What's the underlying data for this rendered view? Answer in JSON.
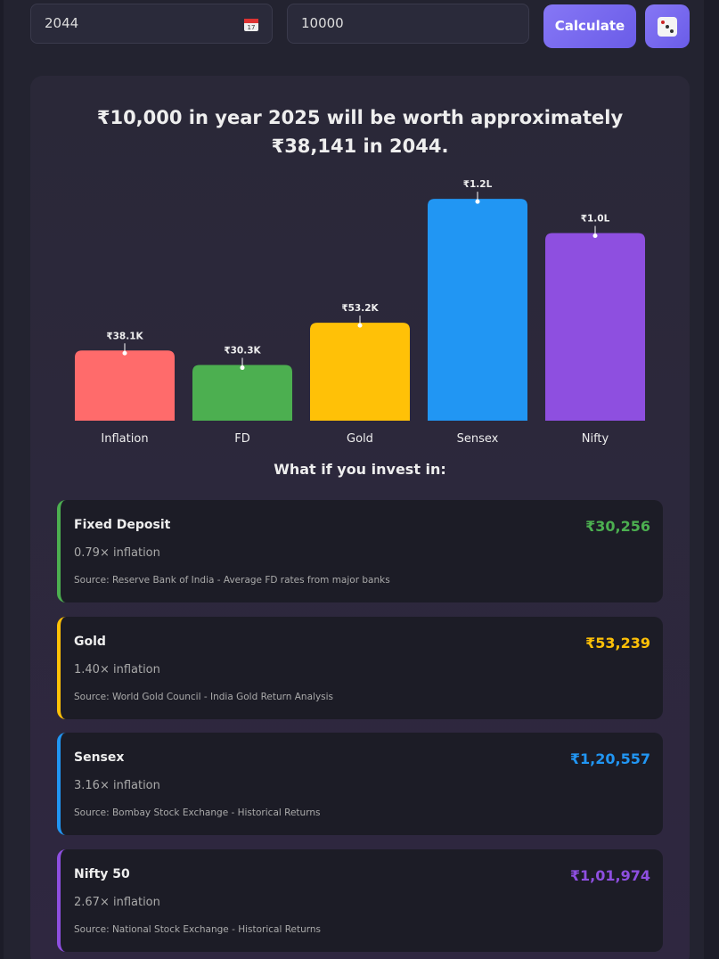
{
  "inputs": {
    "year": "2044",
    "amount": "10000",
    "calculate_button": "Calculate"
  },
  "result_text": "₹10,000 in year 2025 will be worth approximately ₹38,141 in 2044.",
  "chart_data": {
    "type": "bar",
    "categories": [
      "Inflation",
      "FD",
      "Gold",
      "Sensex",
      "Nifty"
    ],
    "values": [
      38141,
      30256,
      53239,
      120557,
      101974
    ],
    "value_labels": [
      "₹38.1K",
      "₹30.3K",
      "₹53.2K",
      "₹1.2L",
      "₹1.0L"
    ],
    "colors": [
      "#ff6b6b",
      "#4caf50",
      "#ffc107",
      "#2196f3",
      "#8e4fe0"
    ],
    "ylim": [
      0,
      125000
    ]
  },
  "section_title": "What if you invest in:",
  "cards": [
    {
      "name": "Fixed Deposit",
      "value": "₹30,256",
      "ratio": "0.79× inflation",
      "source": "Source: Reserve Bank of India - Average FD rates from major banks",
      "color": "#4caf50"
    },
    {
      "name": "Gold",
      "value": "₹53,239",
      "ratio": "1.40× inflation",
      "source": "Source: World Gold Council - India Gold Return Analysis",
      "color": "#ffc107"
    },
    {
      "name": "Sensex",
      "value": "₹1,20,557",
      "ratio": "3.16× inflation",
      "source": "Source: Bombay Stock Exchange - Historical Returns",
      "color": "#2196f3"
    },
    {
      "name": "Nifty 50",
      "value": "₹1,01,974",
      "ratio": "2.67× inflation",
      "source": "Source: National Stock Exchange - Historical Returns",
      "color": "#8e4fe0"
    }
  ]
}
